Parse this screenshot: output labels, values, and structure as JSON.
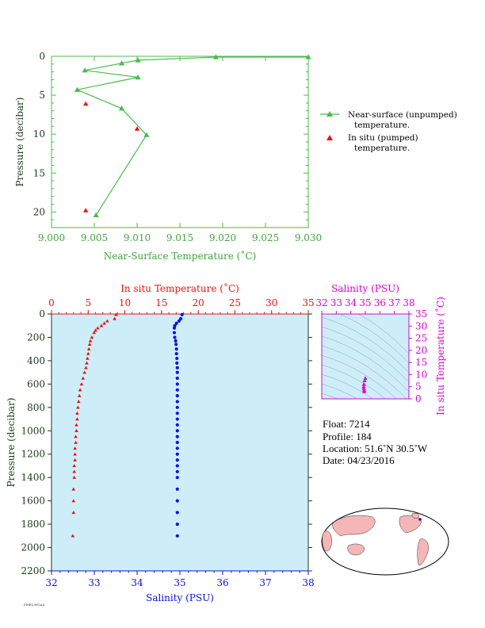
{
  "colors": {
    "green": "#4cbb4c",
    "green_text": "#3aa83a",
    "red": "#ee1111",
    "blue": "#1010e0",
    "magenta": "#dd00dd",
    "panel_bg": "#cdeef8",
    "dark": "#1a3a1a",
    "land": "#f4b6b6"
  },
  "top_chart": {
    "type": "line",
    "xlabel": "Near-Surface Temperature (˚C)",
    "ylabel": "Pressure (decibar)",
    "xlim": [
      9.0,
      9.03
    ],
    "ylim": [
      0,
      22
    ],
    "x_ticks": [
      "9.000",
      "9.005",
      "9.010",
      "9.015",
      "9.020",
      "9.025",
      "9.030"
    ],
    "y_ticks": [
      "0",
      "5",
      "10",
      "15",
      "20"
    ],
    "legend": [
      "Near-surface (unpumped)",
      "temperature.",
      "In situ (pumped)",
      "temperature."
    ],
    "chart_data": {
      "type": "line",
      "series": [
        {
          "name": "Near-surface (unpumped) temperature.",
          "x": [
            9.03,
            9.0192,
            9.0101,
            9.0082,
            9.0039,
            9.0101,
            9.003,
            9.0082,
            9.0111,
            9.0052
          ],
          "y": [
            0.1,
            0.1,
            0.5,
            0.9,
            1.8,
            2.7,
            4.3,
            6.7,
            10.1,
            20.4
          ]
        },
        {
          "name": "In situ (pumped) temperature.",
          "x": [
            9.004,
            9.01,
            9.004
          ],
          "y": [
            6.1,
            9.3,
            19.8
          ]
        }
      ]
    }
  },
  "profile_chart": {
    "ylabel": "Pressure (decibar)",
    "temp_label": "In situ Temperature (˚C)",
    "sal_label": "Salinity (PSU)",
    "temp_ticks": [
      "0",
      "5",
      "10",
      "15",
      "20",
      "25",
      "30",
      "35"
    ],
    "sal_ticks": [
      "32",
      "33",
      "34",
      "35",
      "36",
      "37",
      "38"
    ],
    "p_ticks": [
      "0",
      "200",
      "400",
      "600",
      "800",
      "1000",
      "1200",
      "1400",
      "1600",
      "1800",
      "2000",
      "2200"
    ],
    "chart_data": {
      "type": "scatter",
      "ylim": [
        0,
        2200
      ],
      "series": [
        {
          "name": "In situ Temperature (˚C)",
          "x": [
            8.8,
            8.6,
            7.6,
            7.2,
            6.8,
            6.3,
            6.0,
            5.8,
            5.5,
            5.3,
            5.2,
            5.1,
            5.0,
            4.9,
            4.8,
            4.7,
            4.5,
            4.3,
            4.1,
            3.9,
            3.8,
            3.7,
            3.6,
            3.5,
            3.5,
            3.4,
            3.4,
            3.3,
            3.3,
            3.2,
            3.2,
            3.2,
            3.1,
            3.1,
            3.1,
            3.0,
            3.0,
            3.0,
            2.9
          ],
          "y": [
            5,
            40,
            60,
            80,
            100,
            120,
            140,
            160,
            200,
            230,
            260,
            300,
            340,
            380,
            420,
            460,
            500,
            550,
            600,
            650,
            700,
            750,
            800,
            850,
            900,
            950,
            1000,
            1050,
            1100,
            1150,
            1200,
            1250,
            1300,
            1350,
            1400,
            1500,
            1600,
            1700,
            1900
          ]
        },
        {
          "name": "Salinity (PSU)",
          "x": [
            35.05,
            35.02,
            34.98,
            34.92,
            34.88,
            34.87,
            34.87,
            34.88,
            34.9,
            34.91,
            34.92,
            34.92,
            34.93,
            34.93,
            34.94,
            34.94,
            34.94,
            34.94,
            34.94,
            34.94,
            34.94,
            34.94,
            34.94,
            34.94,
            34.94,
            34.94,
            34.94,
            34.94,
            34.94,
            34.94,
            34.94,
            34.94,
            34.94,
            34.94,
            34.94,
            34.94,
            34.94,
            34.94,
            34.94
          ],
          "y": [
            5,
            40,
            60,
            80,
            100,
            120,
            160,
            200,
            230,
            260,
            300,
            340,
            380,
            420,
            460,
            500,
            550,
            600,
            650,
            700,
            750,
            800,
            850,
            900,
            950,
            1000,
            1050,
            1100,
            1150,
            1200,
            1250,
            1300,
            1350,
            1400,
            1500,
            1600,
            1700,
            1800,
            1900
          ]
        }
      ]
    }
  },
  "ts_chart": {
    "sal_label": "Salinity (PSU)",
    "temp_label": "In situ Temperature (˚C)",
    "sal_ticks": [
      "32",
      "33",
      "34",
      "35",
      "36",
      "37",
      "38"
    ],
    "temp_ticks": [
      "0",
      "5",
      "10",
      "15",
      "20",
      "25",
      "30",
      "35"
    ],
    "chart_data": {
      "type": "scatter",
      "x": [
        35.0,
        34.95,
        34.9,
        34.88,
        34.9,
        34.92,
        34.93
      ],
      "y": [
        8.5,
        7.5,
        6.0,
        5.0,
        4.2,
        3.5,
        3.0
      ]
    }
  },
  "info": {
    "float": "Float:  7214",
    "profile": "Profile:  184",
    "location": "Location:  51.6˚N  30.5˚W",
    "date": "Date:  04/23/2016"
  },
  "footer_mark": "PMEL/NOAA"
}
